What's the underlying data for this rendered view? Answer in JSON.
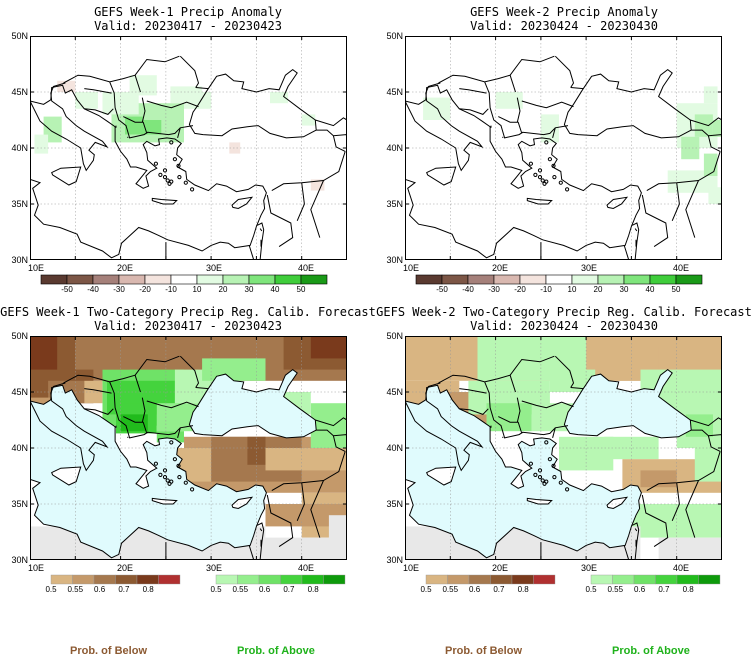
{
  "panels": [
    {
      "title": "GEFS Week-1 Precip Anomaly",
      "valid": "Valid: 20230417 - 20230423"
    },
    {
      "title": "GEFS Week-2 Precip Anomaly",
      "valid": "Valid: 20230424 - 20230430"
    },
    {
      "title": "GEFS Week-1 Two-Category Precip Reg. Calib. Forecast",
      "valid": "Valid: 20230417 - 20230423"
    },
    {
      "title": "GEFS Week-2 Two-Category Precip Reg. Calib. Forecast",
      "valid": "Valid: 20230424 - 20230430"
    }
  ],
  "lat_ticks": [
    "50N",
    "45N",
    "40N",
    "35N",
    "30N"
  ],
  "lon_ticks": [
    "10E",
    "20E",
    "30E",
    "40E"
  ],
  "anomaly_colorbar": {
    "labels": [
      "-50",
      "-40",
      "-30",
      "-20",
      "-10",
      "10",
      "20",
      "30",
      "40",
      "50"
    ],
    "colors": [
      "#5a3a30",
      "#7c5646",
      "#a5807a",
      "#d9b8b0",
      "#f4e4de",
      "#ffffff",
      "#e2fbe2",
      "#b7f2b4",
      "#7fe57c",
      "#3fcd3b",
      "#1a9a18"
    ]
  },
  "below_colorbar": {
    "labels": [
      "0.5",
      "0.55",
      "0.6",
      "0.7",
      "0.8"
    ],
    "colors": [
      "#d9b582",
      "#c4996a",
      "#a5784e",
      "#8c5a32",
      "#7a3a1c",
      "#b03030"
    ]
  },
  "above_colorbar": {
    "labels": [
      "0.5",
      "0.55",
      "0.6",
      "0.7",
      "0.8"
    ],
    "colors": [
      "#b8f7b3",
      "#94ee8d",
      "#6fe267",
      "#44d33d",
      "#21bb1c",
      "#0e9a0b"
    ]
  },
  "prob_below_label": "Prob. of Below",
  "prob_above_label": "Prob. of Above",
  "colors": {
    "sea_blue": "#e0fbfd",
    "no_data_gray": "#e8e8e8",
    "below_brown": "#8c5a32",
    "above_green": "#1fb21b"
  }
}
